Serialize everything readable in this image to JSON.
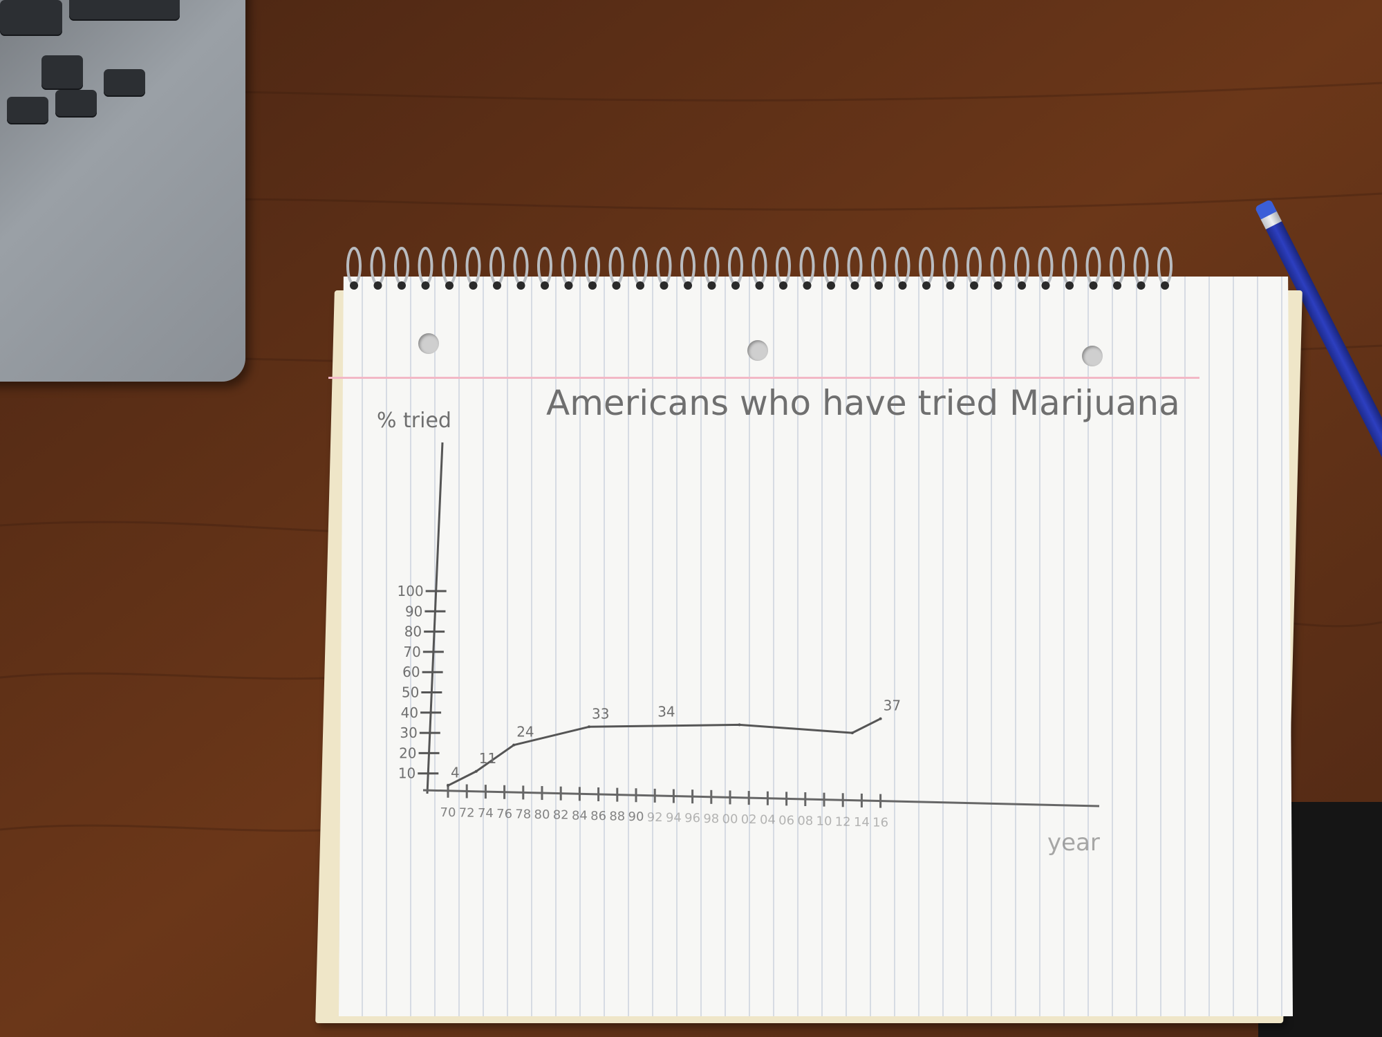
{
  "chart_data": {
    "type": "line",
    "title": "Americans who have tried Marijuana",
    "ylabel": "% tried",
    "xlabel": "year",
    "yticks": [
      "10",
      "20",
      "30",
      "40",
      "50",
      "60",
      "70",
      "80",
      "90",
      "100"
    ],
    "xticks": [
      "70",
      "72",
      "74",
      "76",
      "78",
      "80",
      "82",
      "84",
      "86",
      "88",
      "90",
      "92",
      "94",
      "96",
      "98",
      "00",
      "02",
      "04",
      "06",
      "08",
      "10",
      "12",
      "14",
      "16"
    ],
    "ylim": [
      0,
      100
    ],
    "series": [
      {
        "x": [
          1970,
          1973,
          1977,
          1985,
          2001,
          2013,
          2016
        ],
        "values": [
          4,
          11,
          24,
          33,
          34,
          30,
          37
        ]
      }
    ],
    "data_labels": [
      "4",
      "11",
      "24",
      "33",
      "34",
      "37"
    ],
    "grid": false
  },
  "colors": {
    "desk": "#5a2d17",
    "paper": "#f7f7f5",
    "pencil_line": "#555555",
    "pencil": "#2838b0"
  }
}
